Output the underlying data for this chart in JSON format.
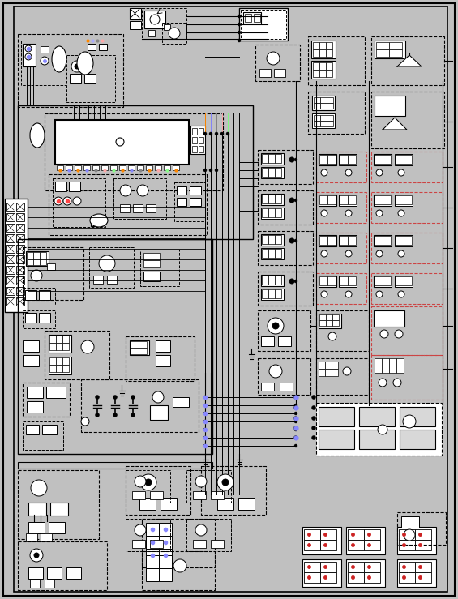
{
  "bg": "#c0c0c0",
  "blk": "#000000",
  "wht": "#ffffff",
  "gray": "#b0b0b0",
  "lgray": "#d8d8d8",
  "red": "#cc2222",
  "figw": 5.65,
  "figh": 7.39,
  "dpi": 100
}
